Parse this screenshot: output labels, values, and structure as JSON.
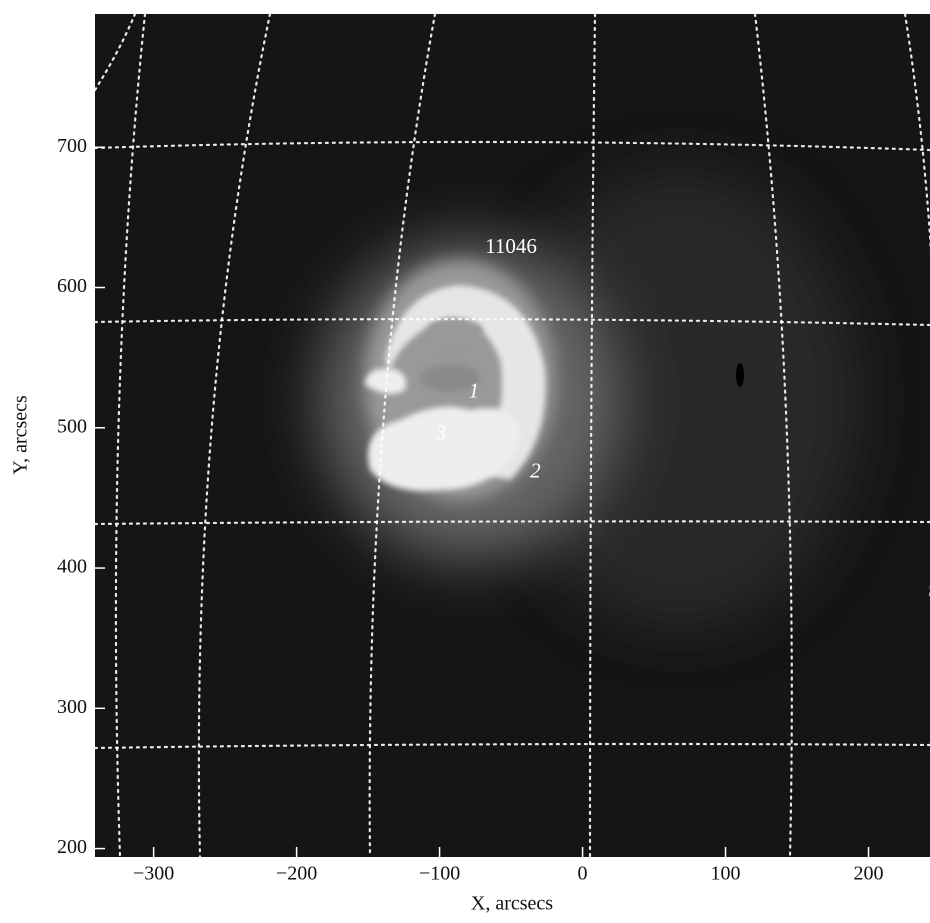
{
  "chart_data": {
    "type": "image",
    "x_label": "X, arcsecs",
    "y_label": "Y, arcsecs",
    "xlim": [
      -341,
      243
    ],
    "ylim": [
      194,
      795
    ],
    "xticks": [
      {
        "value": -300,
        "label": "−300"
      },
      {
        "value": -200,
        "label": "−200"
      },
      {
        "value": -100,
        "label": "−100"
      },
      0,
      100,
      200
    ],
    "yticks": [
      200,
      300,
      400,
      500,
      600,
      700
    ],
    "annotations": [
      {
        "text": "11046",
        "x": -50,
        "y": 628
      },
      {
        "text": "1",
        "x": -76,
        "y": 525
      },
      {
        "text": "3",
        "x": -99,
        "y": 495
      },
      {
        "text": "2",
        "x": -33,
        "y": 468
      }
    ]
  }
}
